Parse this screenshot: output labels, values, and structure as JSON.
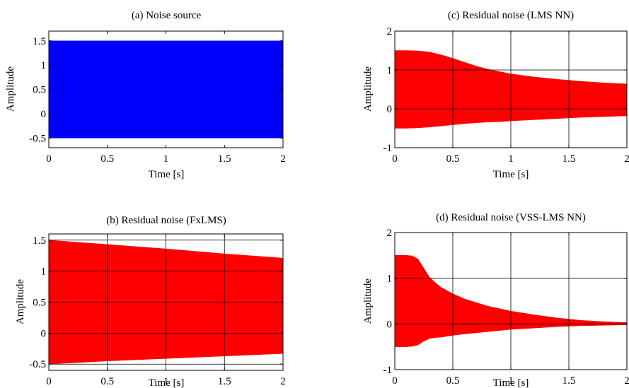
{
  "chart_data": [
    {
      "type": "area",
      "panel": "a",
      "title": "(a) Noise source",
      "xlabel": "Time [s]",
      "ylabel": "Amplitude",
      "xlim": [
        0,
        2
      ],
      "ylim": [
        -0.7,
        1.7
      ],
      "xticks": [
        0,
        0.5,
        1,
        1.5,
        2
      ],
      "xtick_labels": [
        "0",
        "0.5",
        "1",
        "1.5",
        "2"
      ],
      "yticks": [
        -0.5,
        0,
        0.5,
        1,
        1.5
      ],
      "ytick_labels": [
        "-0.5",
        "0",
        "0.5",
        "1",
        "1.5"
      ],
      "grid": false,
      "color": "#0000FF",
      "series": [
        {
          "x": [
            0,
            2
          ],
          "upper": [
            1.5,
            1.5
          ],
          "lower": [
            -0.5,
            -0.5
          ]
        }
      ]
    },
    {
      "type": "area",
      "panel": "b",
      "title": "(b) Residual noise (FxLMS)",
      "xlabel": "Time [s]",
      "ylabel": "Amplitude",
      "xlim": [
        0,
        2
      ],
      "ylim": [
        -0.6,
        1.6
      ],
      "xticks": [
        0,
        0.5,
        1,
        1.5,
        2
      ],
      "xtick_labels": [
        "0",
        "0.5",
        "1",
        "1.5",
        "2"
      ],
      "yticks": [
        -0.5,
        0,
        0.5,
        1,
        1.5
      ],
      "ytick_labels": [
        "-0.5",
        "0",
        "0.5",
        "1",
        "1.5"
      ],
      "grid": true,
      "color": "#FF0000",
      "series": [
        {
          "x": [
            0,
            0.5,
            1,
            1.5,
            2
          ],
          "upper": [
            1.5,
            1.43,
            1.36,
            1.28,
            1.21
          ],
          "lower": [
            -0.5,
            -0.45,
            -0.41,
            -0.37,
            -0.33
          ]
        }
      ]
    },
    {
      "type": "area",
      "panel": "c",
      "title": "(c) Residual noise (LMS NN)",
      "xlabel": "Time [s]",
      "ylabel": "Amplitude",
      "xlim": [
        0,
        2
      ],
      "ylim": [
        -1,
        2
      ],
      "xticks": [
        0,
        0.5,
        1,
        1.5,
        2
      ],
      "xtick_labels": [
        "0",
        "0.5",
        "1",
        "1.5",
        "2"
      ],
      "yticks": [
        -1,
        0,
        1,
        2
      ],
      "ytick_labels": [
        "-1",
        "0",
        "1",
        "2"
      ],
      "grid": true,
      "color": "#FF0000",
      "series": [
        {
          "x": [
            0,
            0.1,
            0.2,
            0.3,
            0.4,
            0.5,
            0.6,
            0.7,
            0.8,
            0.9,
            1.0,
            1.2,
            1.4,
            1.6,
            1.8,
            2.0
          ],
          "upper": [
            1.5,
            1.5,
            1.49,
            1.46,
            1.39,
            1.3,
            1.2,
            1.1,
            1.02,
            0.96,
            0.9,
            0.82,
            0.76,
            0.71,
            0.67,
            0.64
          ],
          "lower": [
            -0.5,
            -0.5,
            -0.49,
            -0.47,
            -0.44,
            -0.41,
            -0.38,
            -0.36,
            -0.34,
            -0.33,
            -0.31,
            -0.28,
            -0.25,
            -0.22,
            -0.2,
            -0.18
          ]
        }
      ]
    },
    {
      "type": "area",
      "panel": "d",
      "title": "(d) Residual noise (VSS-LMS NN)",
      "xlabel": "Time [s]",
      "ylabel": "Amplitude",
      "xlim": [
        0,
        2
      ],
      "ylim": [
        -1,
        2
      ],
      "xticks": [
        0,
        0.5,
        1,
        1.5,
        2
      ],
      "xtick_labels": [
        "0",
        "0.5",
        "1",
        "1.5",
        "2"
      ],
      "yticks": [
        -1,
        0,
        1,
        2
      ],
      "ytick_labels": [
        "-1",
        "0",
        "1",
        "2"
      ],
      "grid": true,
      "color": "#FF0000",
      "series": [
        {
          "x": [
            0,
            0.1,
            0.15,
            0.2,
            0.25,
            0.3,
            0.35,
            0.4,
            0.5,
            0.6,
            0.8,
            1.0,
            1.2,
            1.4,
            1.6,
            1.8,
            2.0
          ],
          "upper": [
            1.5,
            1.5,
            1.49,
            1.42,
            1.22,
            1.02,
            0.9,
            0.8,
            0.66,
            0.55,
            0.39,
            0.28,
            0.2,
            0.13,
            0.08,
            0.05,
            0.03
          ],
          "lower": [
            -0.5,
            -0.5,
            -0.49,
            -0.46,
            -0.38,
            -0.32,
            -0.3,
            -0.29,
            -0.25,
            -0.22,
            -0.17,
            -0.12,
            -0.09,
            -0.06,
            -0.04,
            -0.03,
            -0.02
          ]
        }
      ]
    }
  ]
}
